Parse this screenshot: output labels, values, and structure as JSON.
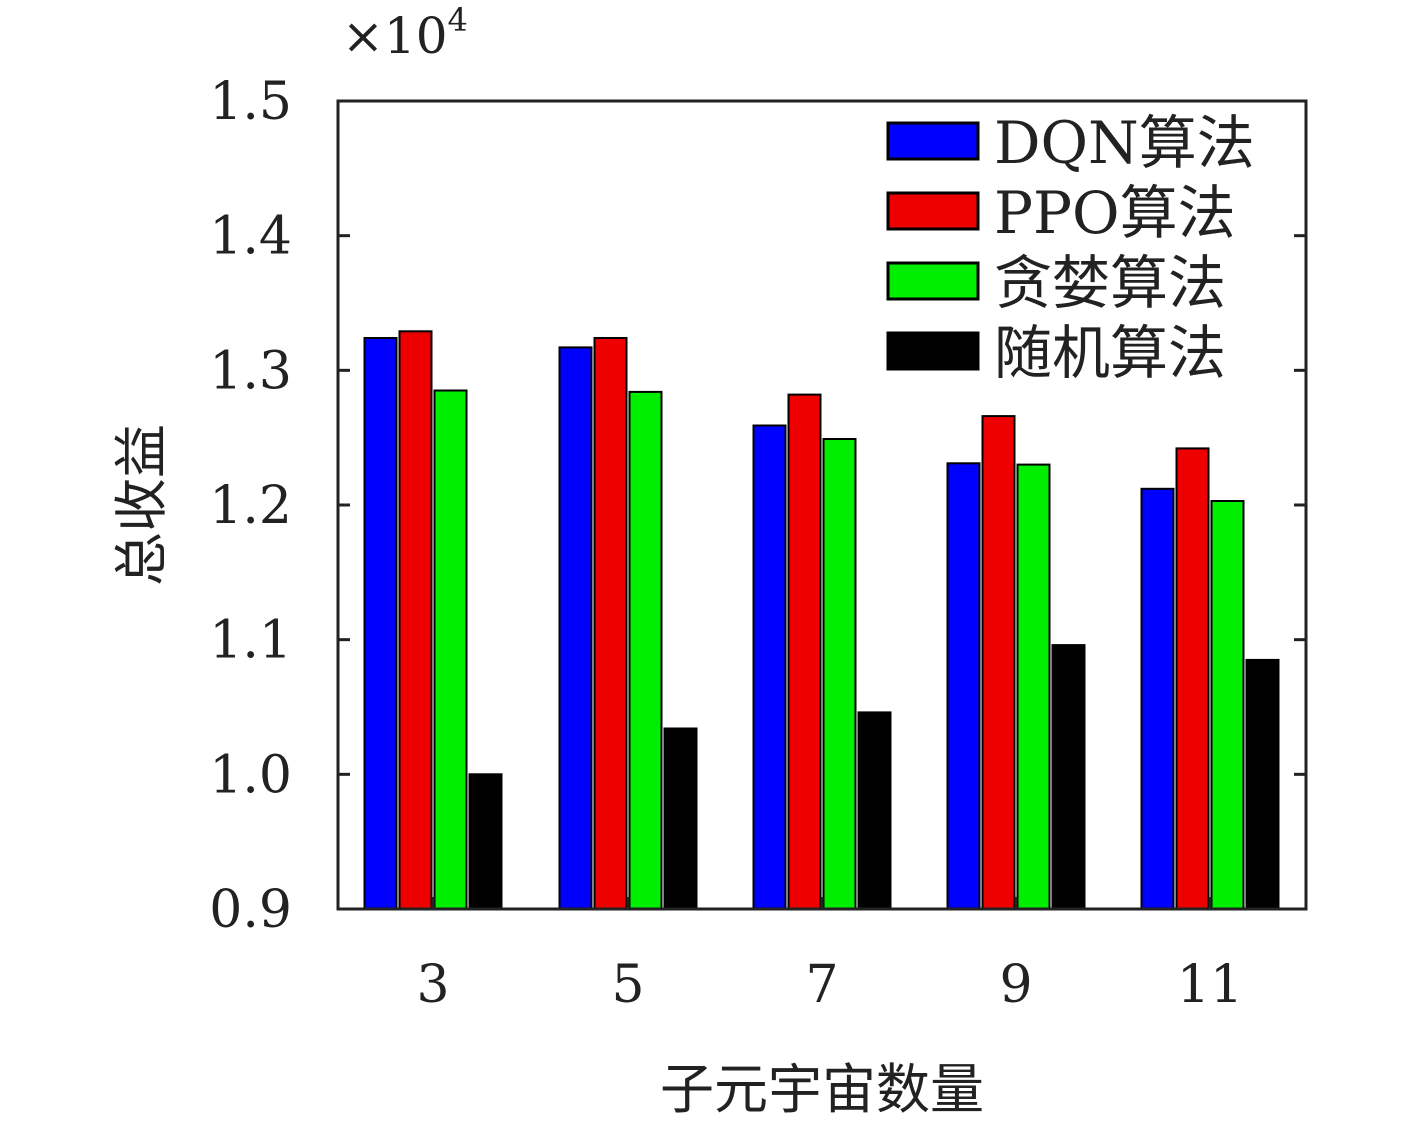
{
  "chart_data": {
    "type": "bar",
    "title": "",
    "xlabel": "子元宇宙数量",
    "ylabel": "总收益",
    "categories": [
      "3",
      "5",
      "7",
      "9",
      "11"
    ],
    "series": [
      {
        "name": "DQN算法",
        "color": "#0000ff",
        "values": [
          13240,
          13170,
          12590,
          12310,
          12120
        ]
      },
      {
        "name": "PPO算法",
        "color": "#ee0000",
        "values": [
          13290,
          13240,
          12820,
          12660,
          12420
        ]
      },
      {
        "name": "贪婪算法",
        "color": "#00ee00",
        "values": [
          12850,
          12840,
          12490,
          12300,
          12030
        ]
      },
      {
        "name": "随机算法",
        "color": "#000000",
        "values": [
          10000,
          10340,
          10460,
          10960,
          10850
        ]
      }
    ],
    "ylim": [
      9000,
      15000
    ],
    "yticks": [
      9000,
      10000,
      11000,
      12000,
      13000,
      14000,
      15000
    ],
    "ytick_labels": [
      "0.9",
      "1.0",
      "1.1",
      "1.2",
      "1.3",
      "1.4",
      "1.5"
    ],
    "y_multiplier_label": "×10",
    "y_multiplier_exponent": "4",
    "legend_position": "top-right",
    "grid": false
  }
}
